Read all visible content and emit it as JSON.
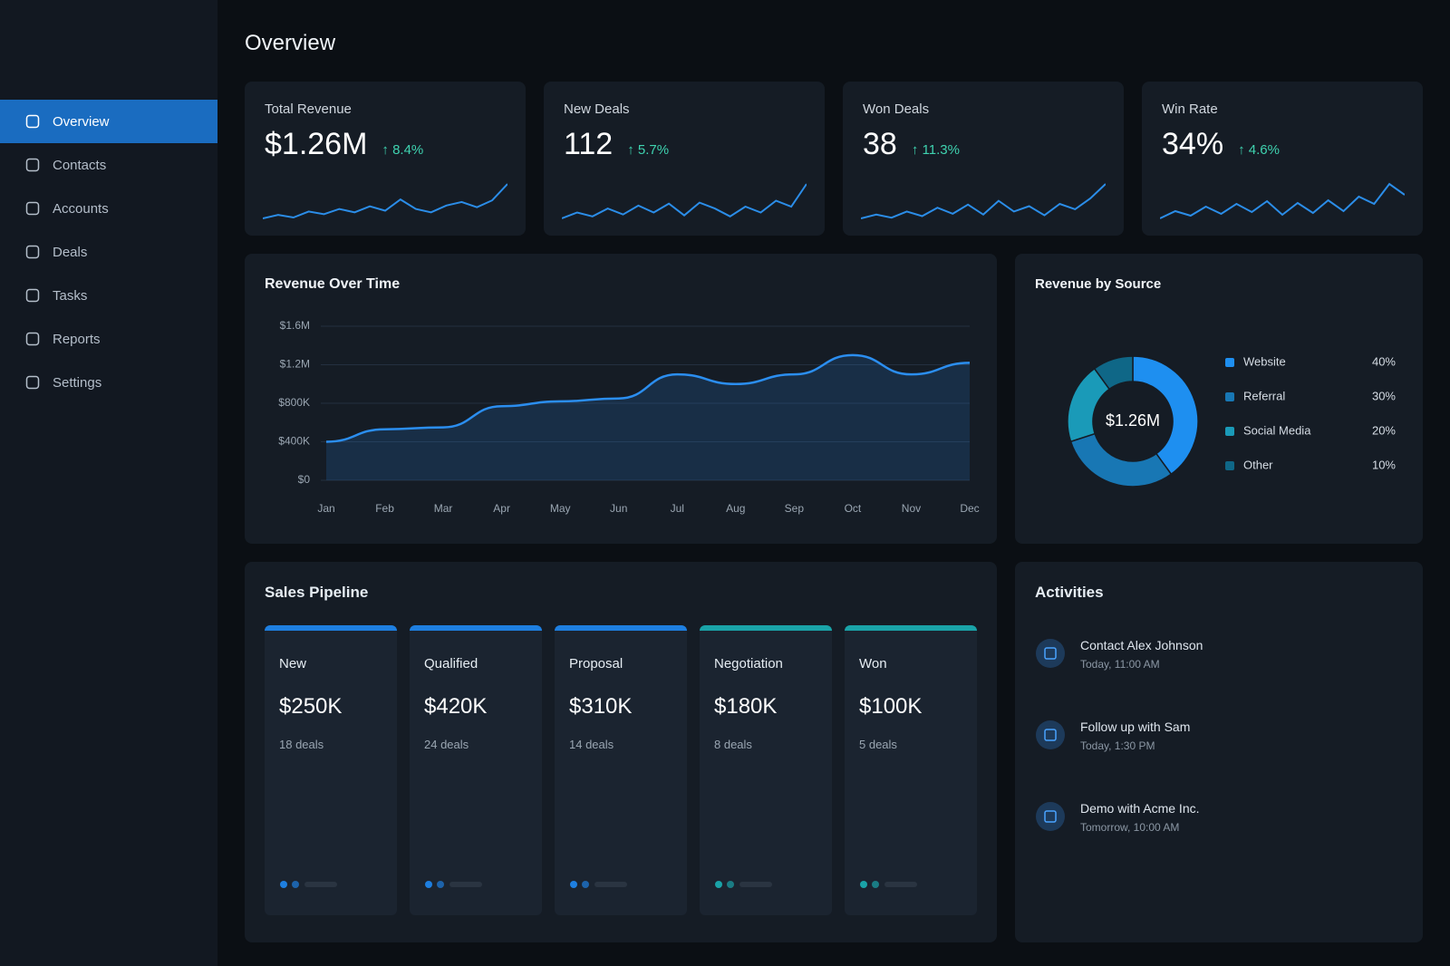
{
  "sidebar": {
    "items": [
      "Overview",
      "Contacts",
      "Accounts",
      "Deals",
      "Tasks",
      "Reports",
      "Settings"
    ]
  },
  "header": {
    "title": "Overview"
  },
  "kpis": [
    {
      "label": "Total Revenue",
      "value": "$1.26M",
      "change": "↑ 8.4%",
      "trend": [
        3,
        3.4,
        3.1,
        3.8,
        3.5,
        4.1,
        3.7,
        4.4,
        3.9,
        5.2,
        4.1,
        3.7,
        4.5,
        4.9,
        4.3,
        5.1,
        7
      ]
    },
    {
      "label": "New Deals",
      "value": "112",
      "change": "↑ 5.7%",
      "trend": [
        3,
        3.6,
        3.2,
        4,
        3.4,
        4.3,
        3.6,
        4.5,
        3.3,
        4.6,
        4,
        3.2,
        4.2,
        3.6,
        4.8,
        4.2,
        6.5
      ]
    },
    {
      "label": "Won Deals",
      "value": "38",
      "change": "↑ 11.3%",
      "trend": [
        3,
        3.5,
        3.1,
        3.9,
        3.3,
        4.4,
        3.6,
        4.8,
        3.5,
        5.3,
        3.9,
        4.6,
        3.4,
        4.9,
        4.2,
        5.6,
        7.5
      ]
    },
    {
      "label": "Win Rate",
      "value": "34%",
      "change": "↑ 4.6%",
      "trend": [
        3,
        3.8,
        3.3,
        4.3,
        3.5,
        4.6,
        3.7,
        4.9,
        3.4,
        4.7,
        3.6,
        5,
        3.8,
        5.4,
        4.6,
        6.8,
        5.6
      ]
    }
  ],
  "chart_data": [
    {
      "type": "line",
      "title": "Revenue Over Time",
      "categories": [
        "Jan",
        "Feb",
        "Mar",
        "Apr",
        "May",
        "Jun",
        "Jul",
        "Aug",
        "Sep",
        "Oct",
        "Nov",
        "Dec"
      ],
      "values": [
        400000,
        530000,
        550000,
        770000,
        820000,
        850000,
        1100000,
        1000000,
        1100000,
        1300000,
        1100000,
        1220000
      ],
      "ylim": [
        0,
        1600000
      ],
      "yticks": [
        {
          "value": 0,
          "label": "$0"
        },
        {
          "value": 400000,
          "label": "$400K"
        },
        {
          "value": 800000,
          "label": "$800K"
        },
        {
          "value": 1200000,
          "label": "$1.2M"
        },
        {
          "value": 1600000,
          "label": "$1.6M"
        }
      ],
      "color": "#2b8ef0",
      "grid": true
    },
    {
      "type": "pie",
      "title": "Revenue by Source",
      "center_label": "$1.26M",
      "categories": [
        "Website",
        "Referral",
        "Social Media",
        "Other"
      ],
      "values": [
        40,
        30,
        20,
        10
      ],
      "value_labels": [
        "40%",
        "30%",
        "20%",
        "10%"
      ],
      "colors": [
        "#1e8ff0",
        "#1877b4",
        "#1a9ab8",
        "#0f6787"
      ]
    }
  ],
  "pipeline": {
    "title": "Sales Pipeline",
    "stages": [
      {
        "name": "New",
        "amount": "$250K",
        "deals": "18 deals",
        "color": "#1e7fe0"
      },
      {
        "name": "Qualified",
        "amount": "$420K",
        "deals": "24 deals",
        "color": "#1e7fe0"
      },
      {
        "name": "Proposal",
        "amount": "$310K",
        "deals": "14 deals",
        "color": "#1e7fe0"
      },
      {
        "name": "Negotiation",
        "amount": "$180K",
        "deals": "8 deals",
        "color": "#1aa3a8"
      },
      {
        "name": "Won",
        "amount": "$100K",
        "deals": "5 deals",
        "color": "#1aa3a8"
      }
    ]
  },
  "activities": {
    "title": "Activities",
    "items": [
      {
        "title": "Contact Alex Johnson",
        "time": "Today, 11:00 AM"
      },
      {
        "title": "Follow up with Sam",
        "time": "Today, 1:30 PM"
      },
      {
        "title": "Demo with Acme Inc.",
        "time": "Tomorrow, 10:00 AM"
      }
    ]
  }
}
